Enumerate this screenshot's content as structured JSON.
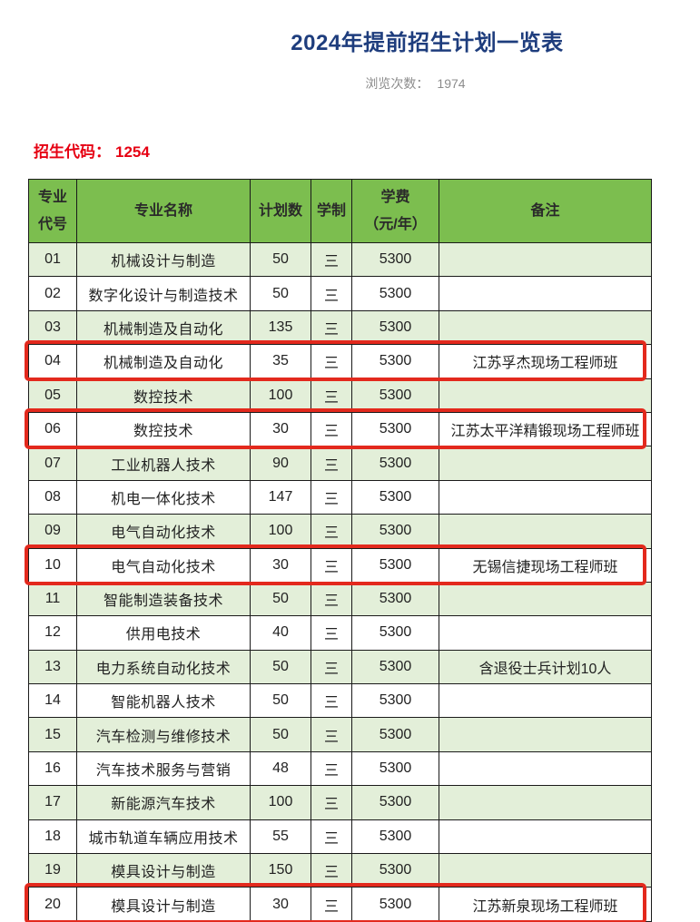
{
  "page": {
    "title": "2024年提前招生计划一览表",
    "views_label": "浏览次数：",
    "views_count": "1974",
    "admission_code_label": "招生代码：",
    "admission_code_value": "1254"
  },
  "colors": {
    "title_color": "#1e3d7d",
    "admission_code_color": "#e60012",
    "header_bg": "#7cbe4f",
    "row_alt_bg": "#e3efd9",
    "highlight_border": "#e3291d",
    "table_border": "#1a1a1a"
  },
  "table": {
    "headers": [
      "专业\n代号",
      "专业名称",
      "计划数",
      "学制",
      "学费\n（元/年）",
      "备注"
    ],
    "rows": [
      {
        "code": "01",
        "name": "机械设计与制造",
        "plan": "50",
        "duration": "三",
        "tuition": "5300",
        "remark": "",
        "highlighted": false
      },
      {
        "code": "02",
        "name": "数字化设计与制造技术",
        "plan": "50",
        "duration": "三",
        "tuition": "5300",
        "remark": "",
        "highlighted": false
      },
      {
        "code": "03",
        "name": "机械制造及自动化",
        "plan": "135",
        "duration": "三",
        "tuition": "5300",
        "remark": "",
        "highlighted": false
      },
      {
        "code": "04",
        "name": "机械制造及自动化",
        "plan": "35",
        "duration": "三",
        "tuition": "5300",
        "remark": "江苏孚杰现场工程师班",
        "highlighted": true
      },
      {
        "code": "05",
        "name": "数控技术",
        "plan": "100",
        "duration": "三",
        "tuition": "5300",
        "remark": "",
        "highlighted": false
      },
      {
        "code": "06",
        "name": "数控技术",
        "plan": "30",
        "duration": "三",
        "tuition": "5300",
        "remark": "江苏太平洋精锻现场工程师班",
        "highlighted": true
      },
      {
        "code": "07",
        "name": "工业机器人技术",
        "plan": "90",
        "duration": "三",
        "tuition": "5300",
        "remark": "",
        "highlighted": false
      },
      {
        "code": "08",
        "name": "机电一体化技术",
        "plan": "147",
        "duration": "三",
        "tuition": "5300",
        "remark": "",
        "highlighted": false
      },
      {
        "code": "09",
        "name": "电气自动化技术",
        "plan": "100",
        "duration": "三",
        "tuition": "5300",
        "remark": "",
        "highlighted": false
      },
      {
        "code": "10",
        "name": "电气自动化技术",
        "plan": "30",
        "duration": "三",
        "tuition": "5300",
        "remark": "无锡信捷现场工程师班",
        "highlighted": true
      },
      {
        "code": "11",
        "name": "智能制造装备技术",
        "plan": "50",
        "duration": "三",
        "tuition": "5300",
        "remark": "",
        "highlighted": false
      },
      {
        "code": "12",
        "name": "供用电技术",
        "plan": "40",
        "duration": "三",
        "tuition": "5300",
        "remark": "",
        "highlighted": false
      },
      {
        "code": "13",
        "name": "电力系统自动化技术",
        "plan": "50",
        "duration": "三",
        "tuition": "5300",
        "remark": "含退役士兵计划10人",
        "highlighted": false
      },
      {
        "code": "14",
        "name": "智能机器人技术",
        "plan": "50",
        "duration": "三",
        "tuition": "5300",
        "remark": "",
        "highlighted": false
      },
      {
        "code": "15",
        "name": "汽车检测与维修技术",
        "plan": "50",
        "duration": "三",
        "tuition": "5300",
        "remark": "",
        "highlighted": false
      },
      {
        "code": "16",
        "name": "汽车技术服务与营销",
        "plan": "48",
        "duration": "三",
        "tuition": "5300",
        "remark": "",
        "highlighted": false
      },
      {
        "code": "17",
        "name": "新能源汽车技术",
        "plan": "100",
        "duration": "三",
        "tuition": "5300",
        "remark": "",
        "highlighted": false
      },
      {
        "code": "18",
        "name": "城市轨道车辆应用技术",
        "plan": "55",
        "duration": "三",
        "tuition": "5300",
        "remark": "",
        "highlighted": false
      },
      {
        "code": "19",
        "name": "模具设计与制造",
        "plan": "150",
        "duration": "三",
        "tuition": "5300",
        "remark": "",
        "highlighted": false
      },
      {
        "code": "20",
        "name": "模具设计与制造",
        "plan": "30",
        "duration": "三",
        "tuition": "5300",
        "remark": "江苏新泉现场工程师班",
        "highlighted": true
      }
    ]
  }
}
